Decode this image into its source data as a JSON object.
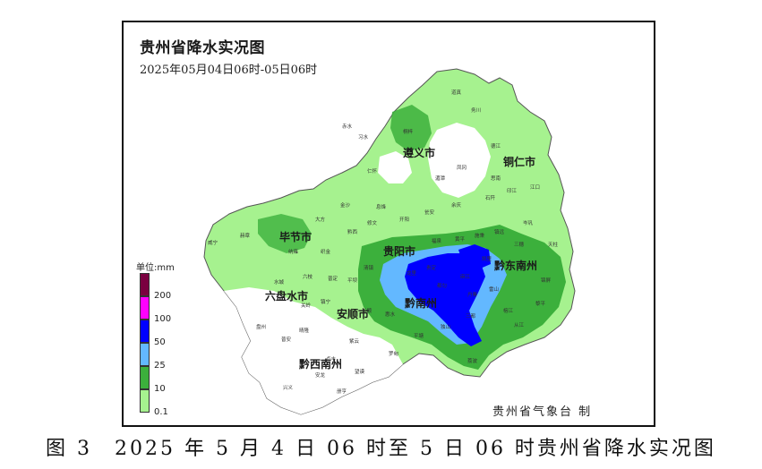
{
  "map": {
    "title": "贵州省降水实况图",
    "subtitle": "2025年05月04日06时-05日06时",
    "credit": "贵州省气象台 制",
    "cities": [
      {
        "name": "遵义市"
      },
      {
        "name": "铜仁市"
      },
      {
        "name": "毕节市"
      },
      {
        "name": "贵阳市"
      },
      {
        "name": "黔东南州"
      },
      {
        "name": "六盘水市"
      },
      {
        "name": "安顺市"
      },
      {
        "name": "黔南州"
      },
      {
        "name": "黔西南州"
      }
    ],
    "towns": [
      "道真",
      "务川",
      "桐梓",
      "习水",
      "赤水",
      "仁怀",
      "湄潭",
      "凤冈",
      "德江",
      "思南",
      "印江",
      "江口",
      "石阡",
      "余庆",
      "威宁",
      "赫章",
      "大方",
      "金沙",
      "黔西",
      "织金",
      "纳雍",
      "水城",
      "盘州",
      "晴隆",
      "普安",
      "兴义",
      "安龙",
      "册亨",
      "望谟",
      "贞丰",
      "紫云",
      "长顺",
      "惠水",
      "罗甸",
      "平塘",
      "独山",
      "荔波",
      "三都",
      "丹寨",
      "雷山",
      "榕江",
      "从江",
      "黎平",
      "锦屏",
      "天柱",
      "三穗",
      "镇远",
      "岑巩",
      "施秉",
      "黄平",
      "凯里",
      "麻江",
      "都匀",
      "福泉",
      "瓮安",
      "开阳",
      "息烽",
      "修文",
      "清镇",
      "平坝",
      "普定",
      "镇宁",
      "关岭",
      "六枝",
      "龙里",
      "贵定"
    ],
    "legend": {
      "unit": "单位:mm",
      "levels": [
        {
          "label": "200",
          "color": "#7a0040"
        },
        {
          "label": "100",
          "color": "#ff00ff"
        },
        {
          "label": "50",
          "color": "#0000ff"
        },
        {
          "label": "25",
          "color": "#63b8ff"
        },
        {
          "label": "10",
          "color": "#3cb03c"
        },
        {
          "label": "0.1",
          "color": "#a6f28f"
        }
      ]
    }
  },
  "caption": "图 3　2025 年 5 月 4 日 06 时至 5 日 06 时贵州省降水实况图"
}
